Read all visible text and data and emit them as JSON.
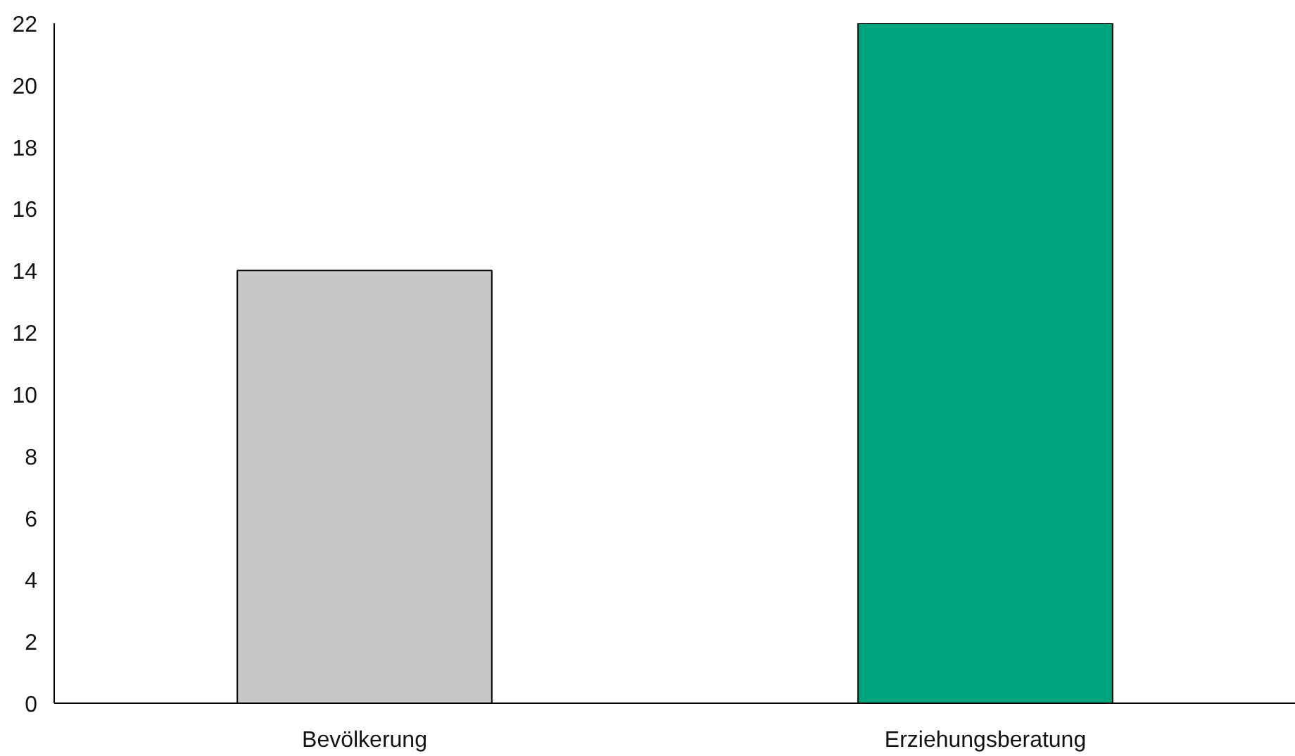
{
  "chart_data": {
    "type": "bar",
    "categories": [
      "Bevölkerung",
      "Erziehungsberatung"
    ],
    "values": [
      14,
      22
    ],
    "colors": [
      "#c6c7c9",
      "#00a57e"
    ],
    "ylim": [
      0,
      22
    ],
    "yticks": [
      0,
      2,
      4,
      6,
      8,
      10,
      12,
      14,
      16,
      18,
      20,
      22
    ],
    "grid": false
  }
}
